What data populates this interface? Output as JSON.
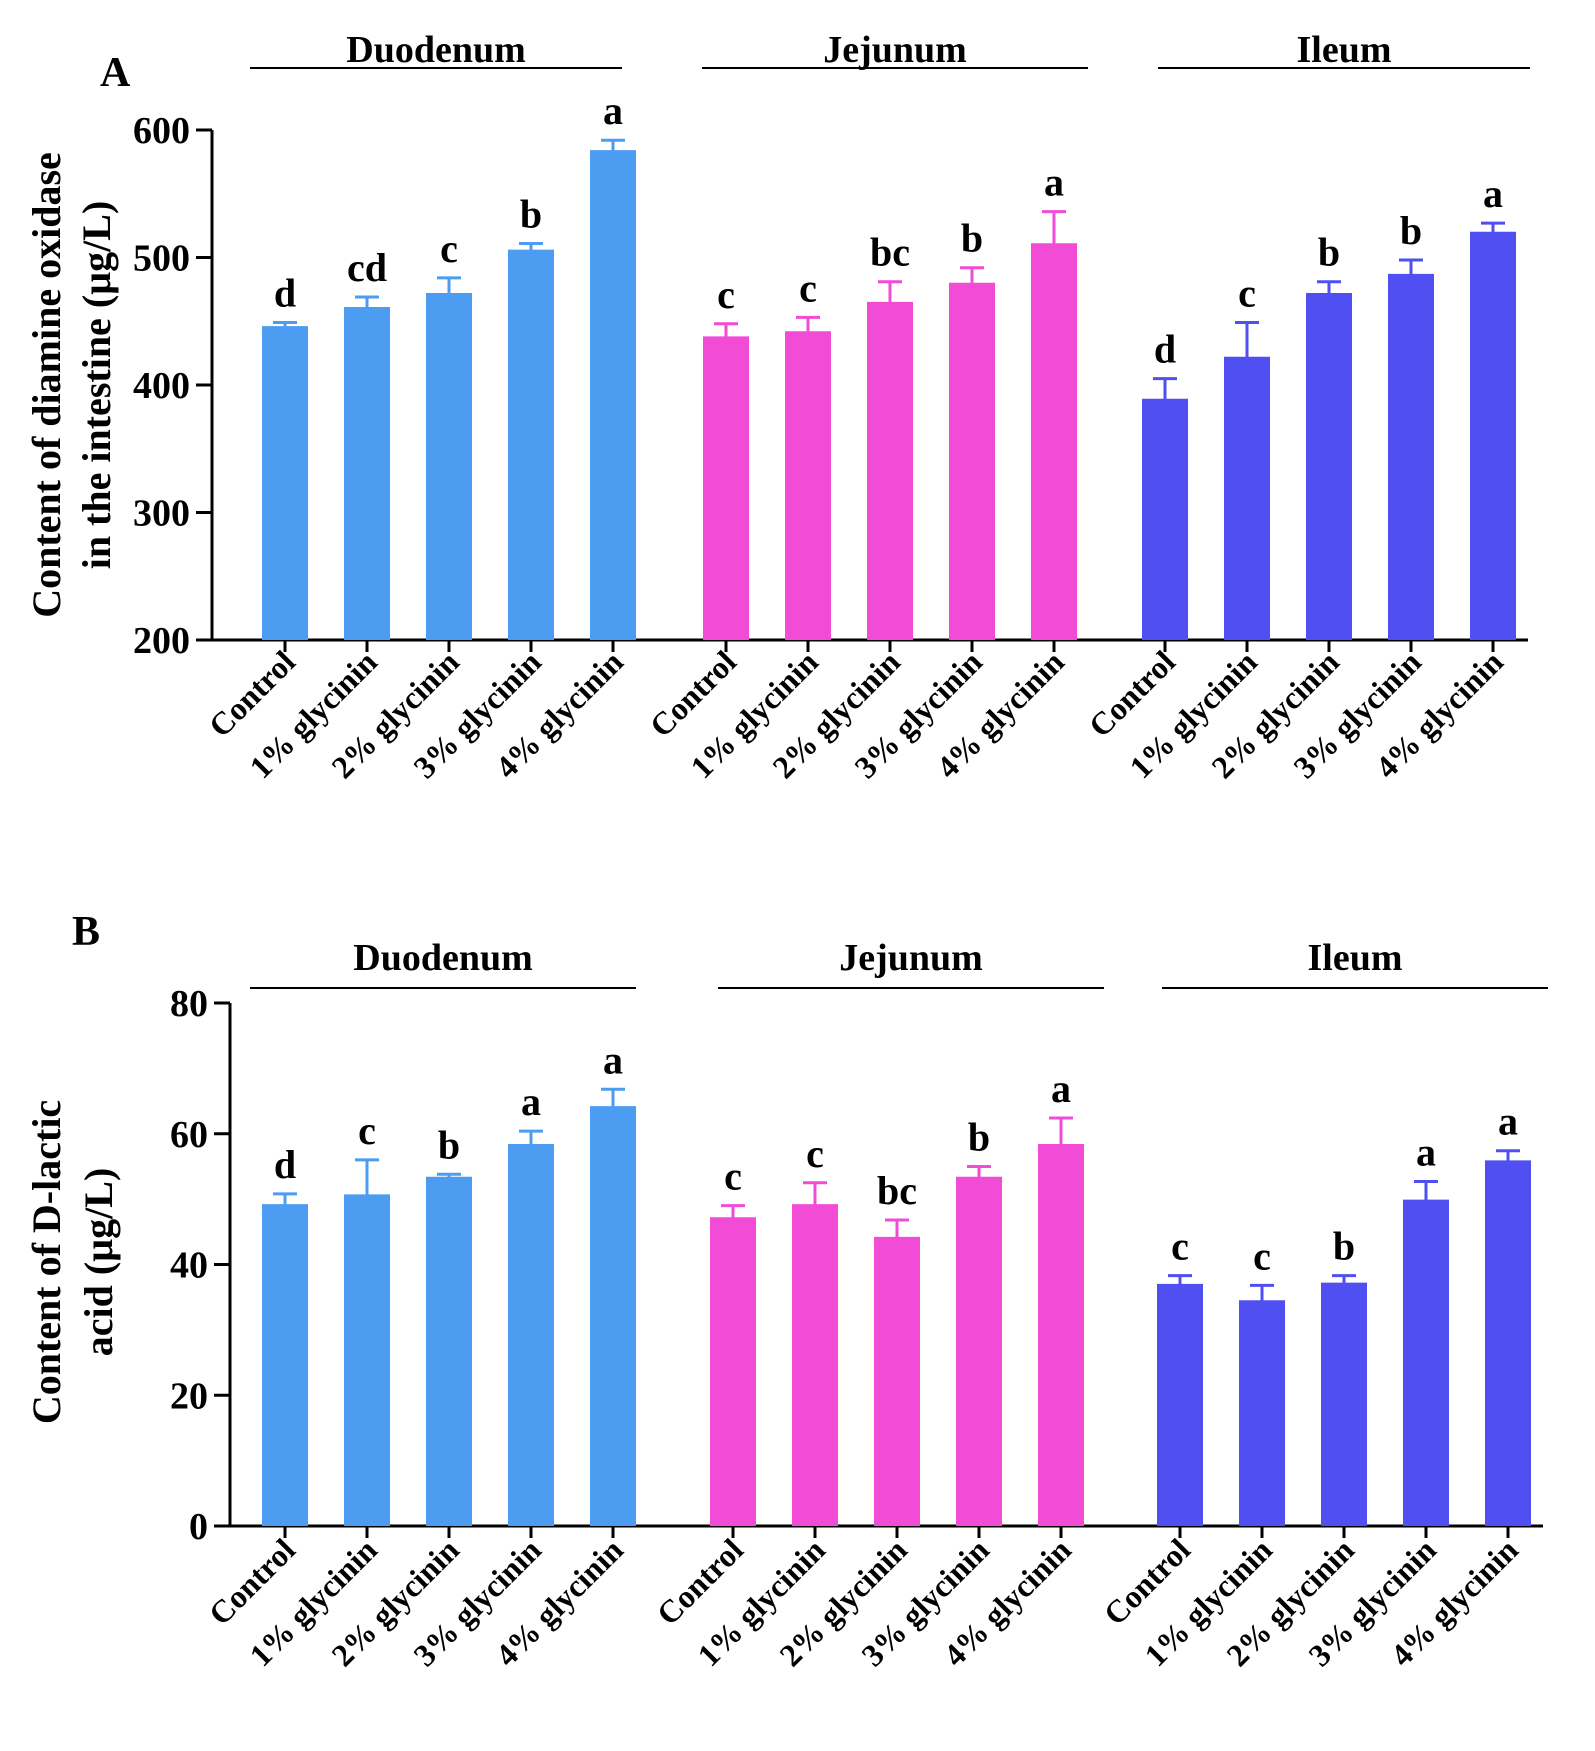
{
  "chart_data": [
    {
      "type": "bar",
      "panel": "A",
      "ylabel_lines": [
        "Content of diamine oxidase",
        "in the intestine (µg/L)"
      ],
      "ylim": [
        200,
        600
      ],
      "yticks": [
        "200",
        "300",
        "400",
        "500",
        "600"
      ],
      "categories": [
        "Control",
        "1% glycinin",
        "2% glycinin",
        "3% glycinin",
        "4% glycinin"
      ],
      "groups": [
        {
          "name": "Duodenum",
          "color": "#4c9cf2",
          "values": [
            445,
            460,
            471,
            505,
            583
          ],
          "errors": [
            4,
            9,
            13,
            6,
            9
          ],
          "letters": [
            "d",
            "cd",
            "c",
            "b",
            "a"
          ]
        },
        {
          "name": "Jejunum",
          "color": "#f24cd6",
          "values": [
            437,
            441,
            464,
            479,
            510
          ],
          "errors": [
            11,
            12,
            17,
            13,
            26
          ],
          "letters": [
            "c",
            "c",
            "bc",
            "b",
            "a"
          ]
        },
        {
          "name": "Ileum",
          "color": "#5050f2",
          "values": [
            388,
            421,
            471,
            486,
            519
          ],
          "errors": [
            17,
            28,
            10,
            12,
            8
          ],
          "letters": [
            "d",
            "c",
            "b",
            "b",
            "a"
          ]
        }
      ]
    },
    {
      "type": "bar",
      "panel": "B",
      "ylabel_lines": [
        "Content of D-lactic",
        "acid (µg/L)"
      ],
      "ylim": [
        0,
        80
      ],
      "yticks": [
        "0",
        "20",
        "40",
        "60",
        "80"
      ],
      "categories": [
        "Control",
        "1% glycinin",
        "2% glycinin",
        "3% glycinin",
        "4% glycinin"
      ],
      "groups": [
        {
          "name": "Duodenum",
          "color": "#4c9cf2",
          "values": [
            49,
            50.5,
            53.2,
            58.2,
            64
          ],
          "errors": [
            1.8,
            5.5,
            0.6,
            2.2,
            2.8
          ],
          "letters": [
            "d",
            "c",
            "b",
            "a",
            "a"
          ]
        },
        {
          "name": "Jejunum",
          "color": "#f24cd6",
          "values": [
            47,
            49,
            44,
            53.2,
            58.2
          ],
          "errors": [
            2,
            3.5,
            2.8,
            1.8,
            4.2
          ],
          "letters": [
            "c",
            "c",
            "bc",
            "b",
            "a"
          ]
        },
        {
          "name": "Ileum",
          "color": "#5050f2",
          "values": [
            36.8,
            34.3,
            37,
            49.7,
            55.7
          ],
          "errors": [
            1.5,
            2.5,
            1.3,
            3,
            1.7
          ],
          "letters": [
            "c",
            "c",
            "b",
            "a",
            "a"
          ]
        }
      ]
    }
  ]
}
